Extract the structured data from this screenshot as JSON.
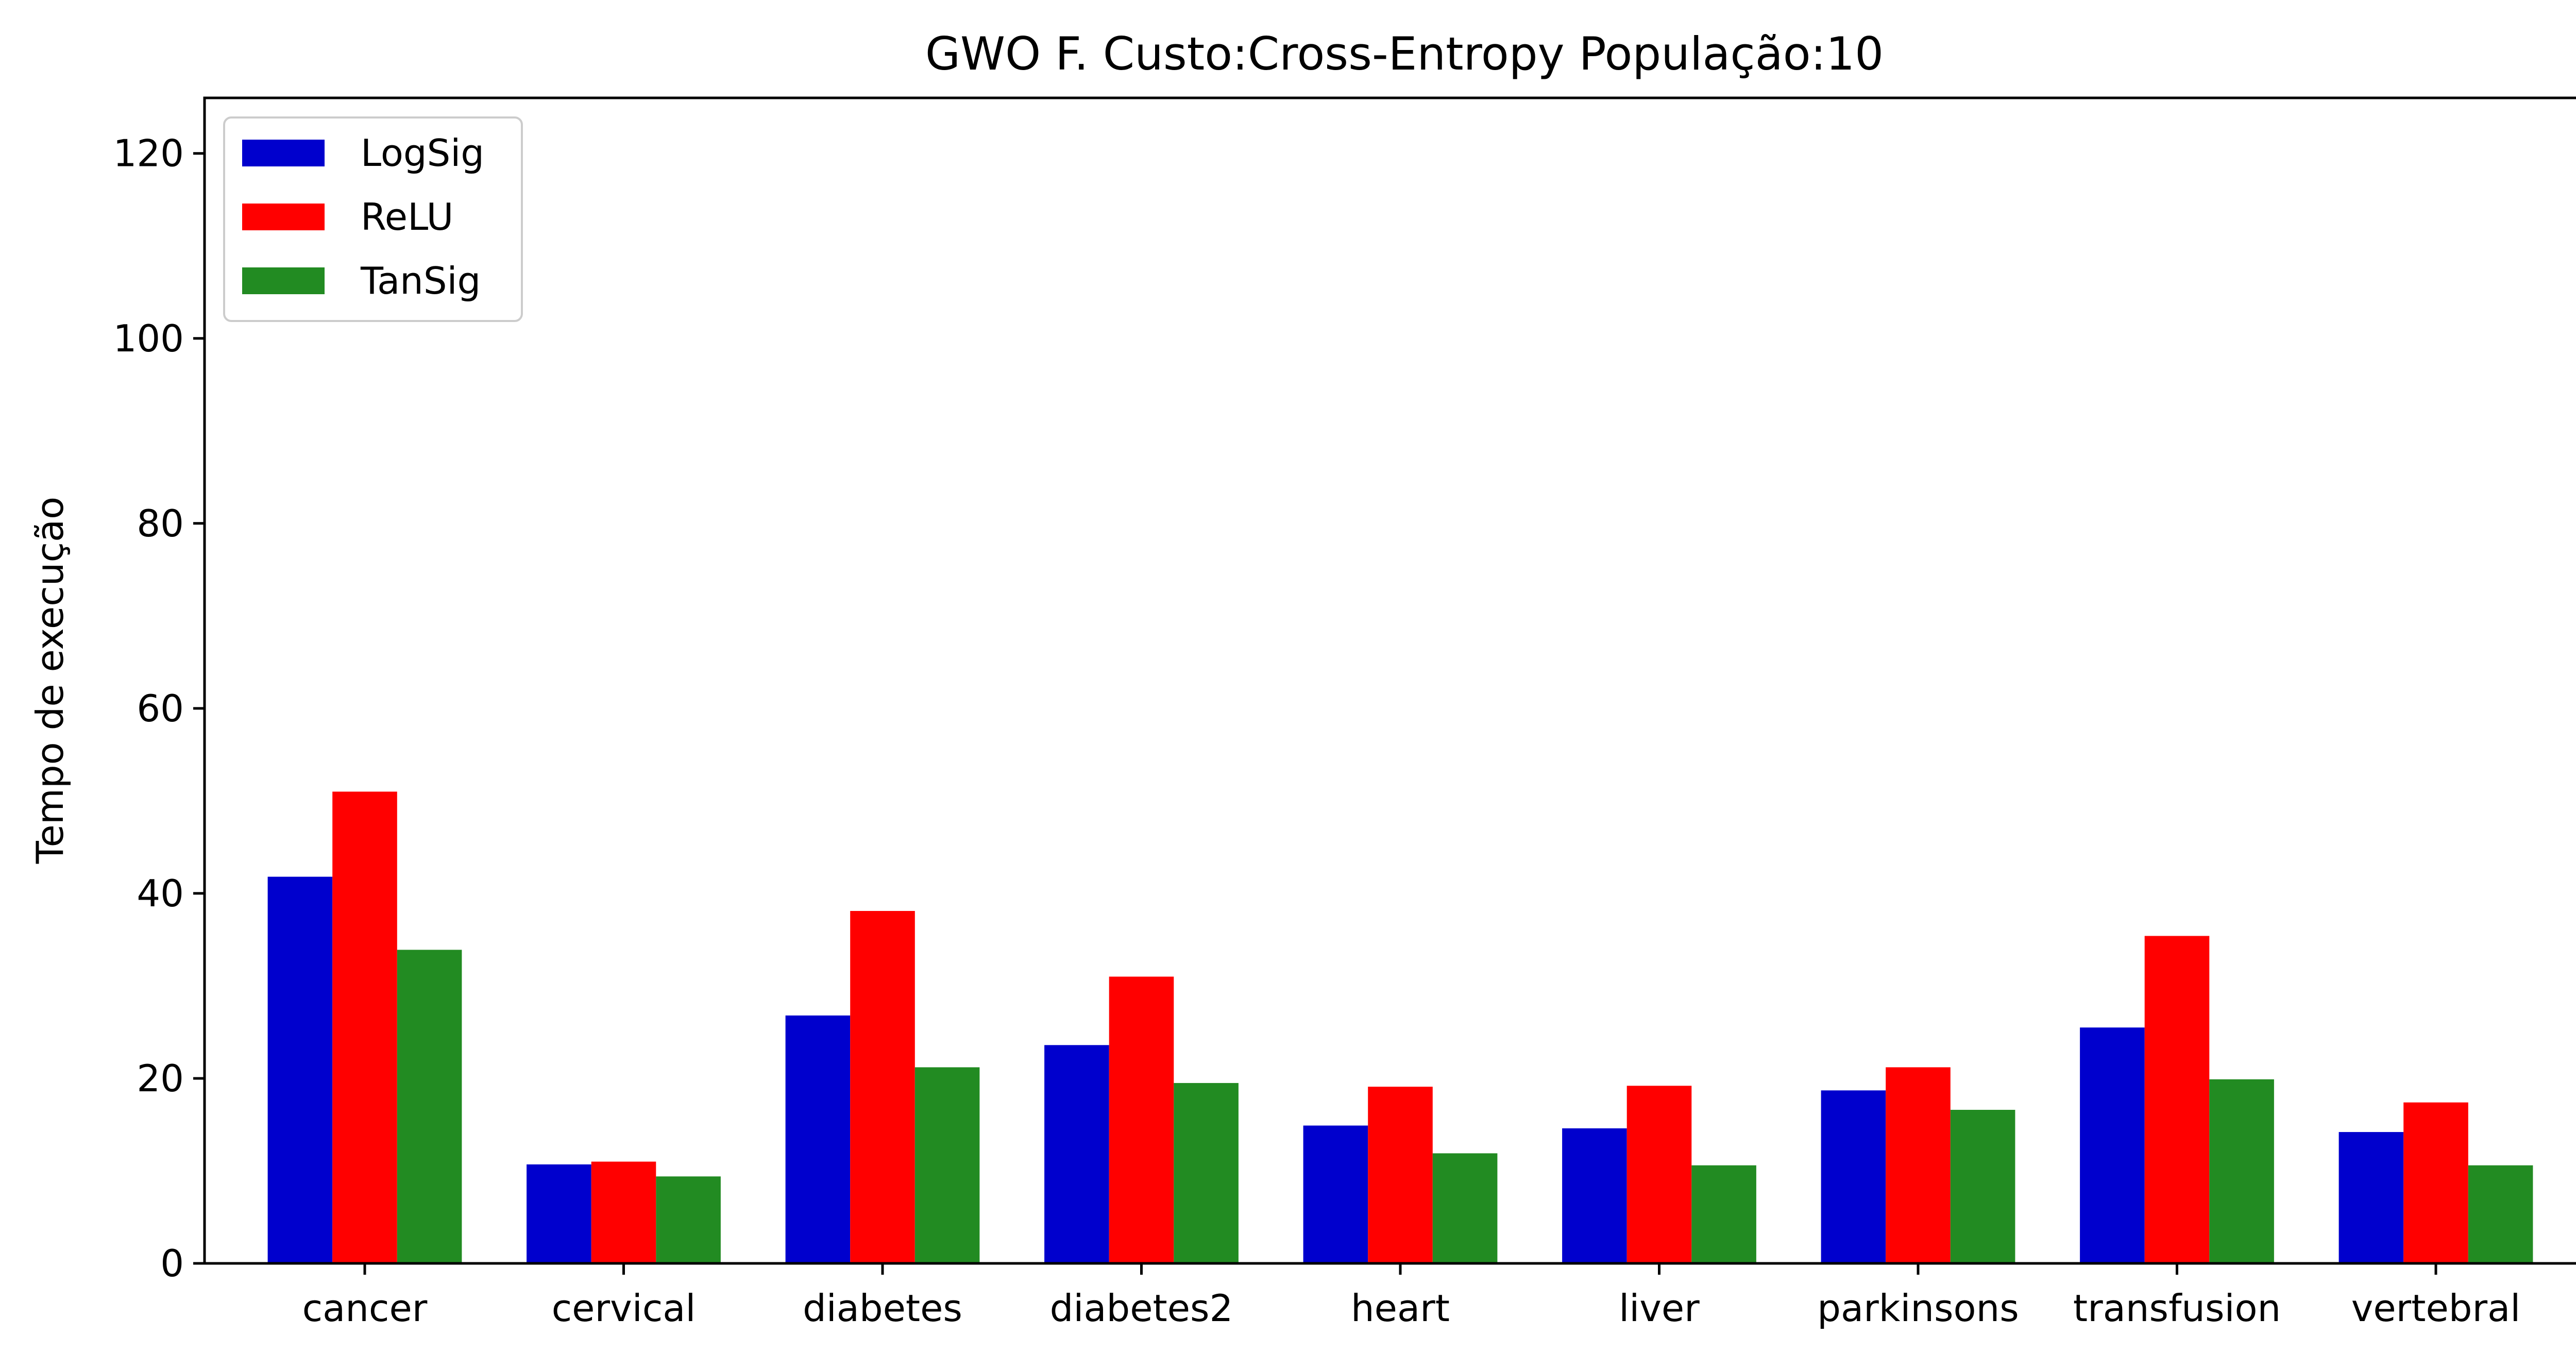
{
  "chart_data": {
    "type": "bar",
    "title": "GWO F. Custo:Cross-Entropy População:10",
    "xlabel": "",
    "ylabel": "Tempo de execução",
    "ylim": [
      0,
      126
    ],
    "yticks": [
      0,
      20,
      40,
      60,
      80,
      100,
      120
    ],
    "grid": false,
    "legend_position": "top-left",
    "categories": [
      "cancer",
      "cervical",
      "diabetes",
      "diabetes2",
      "heart",
      "liver",
      "parkinsons",
      "transfusion",
      "vertebral"
    ],
    "series": [
      {
        "name": "LogSig",
        "color": "#0000cd",
        "values": [
          41.8,
          10.7,
          26.8,
          23.6,
          14.9,
          14.6,
          18.7,
          25.5,
          14.2
        ]
      },
      {
        "name": "ReLU",
        "color": "#ff0000",
        "values": [
          51.0,
          11.0,
          38.1,
          31.0,
          19.1,
          19.2,
          21.2,
          35.4,
          17.4
        ]
      },
      {
        "name": "TanSig",
        "color": "#228b22",
        "values": [
          33.9,
          9.4,
          21.2,
          19.5,
          11.9,
          10.6,
          16.6,
          19.9,
          10.6
        ]
      }
    ]
  }
}
